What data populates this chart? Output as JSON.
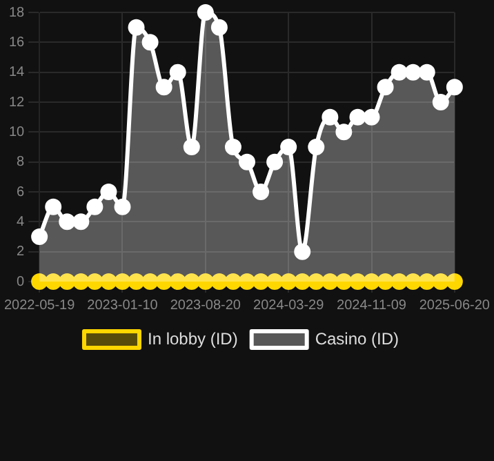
{
  "chart_data": {
    "type": "line",
    "categories": [
      "2022-05-19",
      null,
      null,
      null,
      null,
      null,
      "2023-01-10",
      null,
      null,
      null,
      null,
      null,
      "2023-08-20",
      null,
      null,
      null,
      null,
      null,
      "2024-03-29",
      null,
      null,
      null,
      null,
      null,
      "2024-11-09",
      null,
      null,
      null,
      null,
      null,
      "2025-06-20"
    ],
    "series": [
      {
        "name": "In lobby (ID)",
        "type": "line",
        "color": "#ffd700",
        "values": [
          0,
          0,
          0,
          0,
          0,
          0,
          0,
          0,
          0,
          0,
          0,
          0,
          0,
          0,
          0,
          0,
          0,
          0,
          0,
          0,
          0,
          0,
          0,
          0,
          0,
          0,
          0,
          0,
          0,
          0,
          0
        ]
      },
      {
        "name": "Casino (ID)",
        "type": "area",
        "color": "#ffffff",
        "values": [
          3,
          5,
          4,
          4,
          5,
          6,
          5,
          17,
          16,
          13,
          14,
          9,
          18,
          17,
          9,
          8,
          6,
          8,
          9,
          2,
          9,
          11,
          10,
          11,
          11,
          13,
          14,
          14,
          14,
          12,
          13
        ]
      }
    ],
    "ylim": [
      0,
      18
    ],
    "yticks": [
      0,
      2,
      4,
      6,
      8,
      10,
      12,
      14,
      16,
      18
    ],
    "grid": true,
    "legend": "bottom",
    "marker": "circle"
  }
}
